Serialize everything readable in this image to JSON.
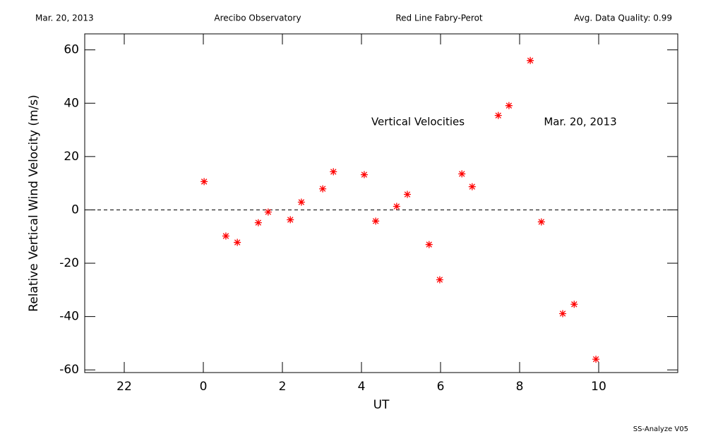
{
  "chart_data": {
    "type": "scatter",
    "header": [
      "Mar. 20, 2013",
      "Arecibo Observatory",
      "Red Line Fabry-Perot",
      "Avg. Data Quality: 0.99"
    ],
    "annotations": [
      "Vertical Velocities",
      "Mar. 20, 2013"
    ],
    "footer": "SS-Analyze V05",
    "x_label": "UT",
    "y_label": "Relative Vertical Wind Velocity (m/s)",
    "color": "#ff0000",
    "reference_line": 0,
    "xlim": [
      -3,
      12
    ],
    "ylim": [
      -61,
      66
    ],
    "xticks": [
      {
        "value": -2,
        "label": "22"
      },
      0,
      2,
      4,
      6,
      8,
      10
    ],
    "yticks": [
      -60,
      -40,
      -20,
      0,
      20,
      40,
      60
    ],
    "x": [
      0.02,
      0.57,
      0.86,
      1.39,
      1.64,
      2.2,
      2.48,
      3.02,
      3.29,
      4.07,
      4.36,
      4.89,
      5.16,
      5.71,
      5.98,
      6.54,
      6.8,
      7.46,
      7.73,
      8.27,
      8.55,
      9.09,
      9.38,
      9.93
    ],
    "values": [
      10.6,
      -9.8,
      -12.2,
      -4.8,
      -0.8,
      -3.7,
      2.9,
      7.9,
      14.3,
      13.2,
      -4.2,
      1.3,
      5.8,
      -13.0,
      -26.2,
      13.5,
      8.7,
      35.4,
      39.1,
      56.0,
      -4.5,
      -38.9,
      -35.4,
      -56.0
    ]
  }
}
